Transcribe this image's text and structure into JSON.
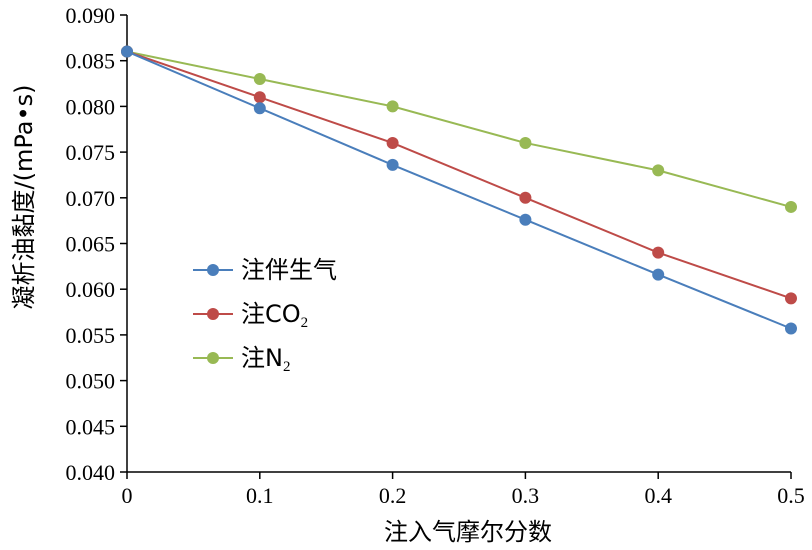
{
  "chart_data": {
    "type": "line",
    "title": "",
    "xlabel": "注入气摩尔分数",
    "ylabel": "凝析油黏度/(mPa•s)",
    "x": [
      0,
      0.1,
      0.2,
      0.3,
      0.4,
      0.5
    ],
    "xlim": [
      0,
      0.5
    ],
    "ylim": [
      0.04,
      0.09
    ],
    "xticks": [
      "0",
      "0.1",
      "0.2",
      "0.3",
      "0.4",
      "0.5"
    ],
    "yticks": [
      "0.040",
      "0.045",
      "0.050",
      "0.055",
      "0.060",
      "0.065",
      "0.070",
      "0.075",
      "0.080",
      "0.085",
      "0.090"
    ],
    "grid": false,
    "legend_position": "left-middle",
    "series": [
      {
        "name": "注伴生气",
        "name_main": "注伴生气",
        "name_sub": "",
        "color": "#4a7ebb",
        "values": [
          0.086,
          0.0798,
          0.0736,
          0.0676,
          0.0616,
          0.0557
        ]
      },
      {
        "name": "注CO2",
        "name_main": "注CO",
        "name_sub": "2",
        "color": "#be4b48",
        "values": [
          0.086,
          0.081,
          0.076,
          0.07,
          0.064,
          0.059
        ]
      },
      {
        "name": "注N2",
        "name_main": "注N",
        "name_sub": "2",
        "color": "#98b954",
        "values": [
          0.086,
          0.083,
          0.08,
          0.076,
          0.073,
          0.069
        ]
      }
    ]
  }
}
